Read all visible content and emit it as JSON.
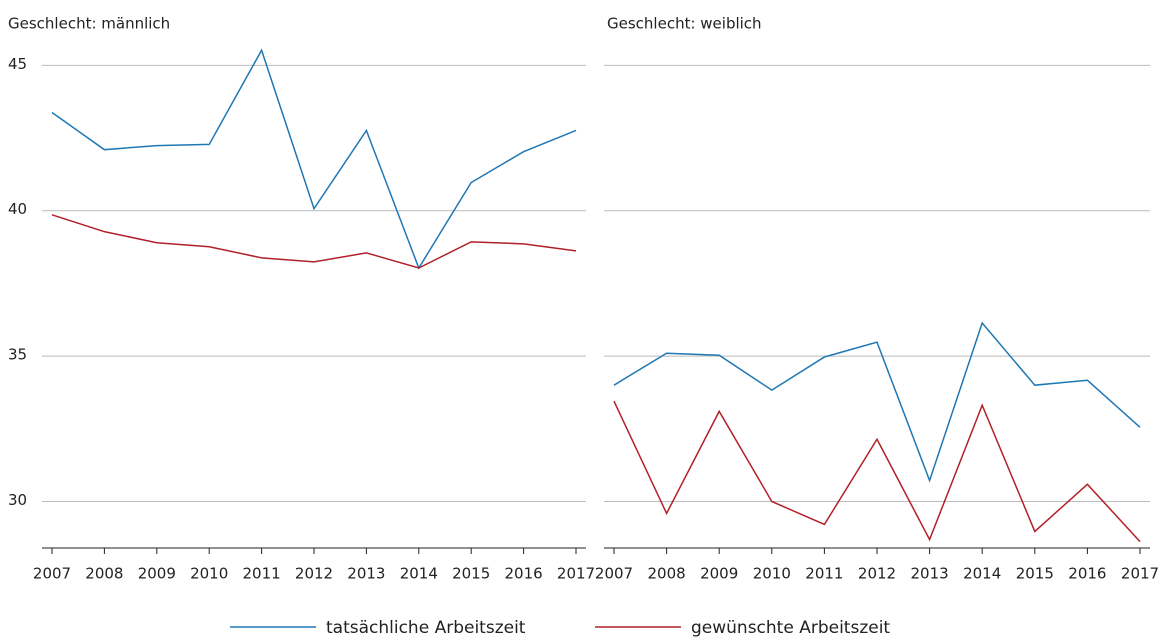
{
  "chart_data": [
    {
      "type": "line",
      "title": "Geschlecht: männlich",
      "categories": [
        "2007",
        "2008",
        "2009",
        "2010",
        "2011",
        "2012",
        "2013",
        "2014",
        "2015",
        "2016",
        "2017"
      ],
      "series": [
        {
          "name": "tatsächliche Arbeitszeit",
          "color": "#1f77b4",
          "values": [
            43.38,
            42.1,
            42.24,
            42.28,
            45.52,
            40.07,
            42.76,
            38.03,
            40.97,
            42.03,
            42.76
          ]
        },
        {
          "name": "gewünschte Arbeitszeit",
          "color": "#b22028",
          "values": [
            39.86,
            39.28,
            38.9,
            38.76,
            38.38,
            38.24,
            38.55,
            38.03,
            38.93,
            38.86,
            38.62
          ]
        }
      ],
      "ylim": [
        28.4,
        45.7
      ],
      "yticks": [
        30,
        35,
        40,
        45
      ],
      "grid": true
    },
    {
      "type": "line",
      "title": "Geschlecht: weiblich",
      "categories": [
        "2007",
        "2008",
        "2009",
        "2010",
        "2011",
        "2012",
        "2013",
        "2014",
        "2015",
        "2016",
        "2017"
      ],
      "series": [
        {
          "color": "#1f77b4",
          "values": [
            34.0,
            35.1,
            35.03,
            33.83,
            34.97,
            35.48,
            30.72,
            36.14,
            34.0,
            34.17,
            32.55
          ]
        },
        {
          "color": "#b22028",
          "values": [
            33.45,
            29.59,
            33.1,
            30.0,
            29.21,
            32.14,
            28.69,
            33.31,
            28.97,
            30.59,
            28.62
          ]
        }
      ],
      "ylim": [
        28.4,
        45.7
      ],
      "yticks": [
        30,
        35,
        40,
        45
      ],
      "grid": true
    }
  ]
}
